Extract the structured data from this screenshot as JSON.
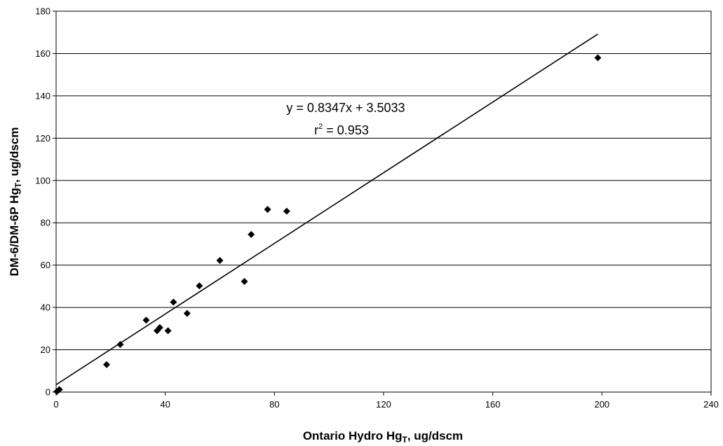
{
  "chart_data": {
    "type": "scatter",
    "xlabel": {
      "main": "Ontario Hydro Hg",
      "sub": "T",
      "rest": ", ug/dscm"
    },
    "ylabel": {
      "main": "DM-6/DM-6P Hg",
      "sub": "T",
      "rest": ", ug/dscm"
    },
    "xlim": [
      0,
      240
    ],
    "ylim": [
      0,
      180
    ],
    "x_ticks": [
      0,
      40,
      80,
      120,
      160,
      200,
      240
    ],
    "y_ticks": [
      0,
      20,
      40,
      60,
      80,
      100,
      120,
      140,
      160,
      180
    ],
    "grid": "horizontal",
    "legend": "none",
    "marker": "diamond",
    "marker_color": "#000000",
    "points": [
      {
        "x": 0.3,
        "y": 0.3
      },
      {
        "x": 1.2,
        "y": 1.2
      },
      {
        "x": 18.5,
        "y": 13
      },
      {
        "x": 23.5,
        "y": 22.5
      },
      {
        "x": 33,
        "y": 34
      },
      {
        "x": 37,
        "y": 29
      },
      {
        "x": 38,
        "y": 30.5
      },
      {
        "x": 41,
        "y": 29
      },
      {
        "x": 43,
        "y": 42.5
      },
      {
        "x": 48,
        "y": 37.2
      },
      {
        "x": 52.5,
        "y": 50.2
      },
      {
        "x": 60,
        "y": 62.2
      },
      {
        "x": 69,
        "y": 52.3
      },
      {
        "x": 71.5,
        "y": 74.5
      },
      {
        "x": 77.5,
        "y": 86.3
      },
      {
        "x": 84.5,
        "y": 85.5
      },
      {
        "x": 198.5,
        "y": 158
      }
    ],
    "trendline": {
      "slope": 0.8347,
      "intercept": 3.5033,
      "x_range": [
        0,
        198.5
      ],
      "equation": "y = 0.8347x + 3.5033",
      "r2_prefix": "r",
      "r2_sup": "2",
      "r2_value": " = 0.953"
    }
  }
}
